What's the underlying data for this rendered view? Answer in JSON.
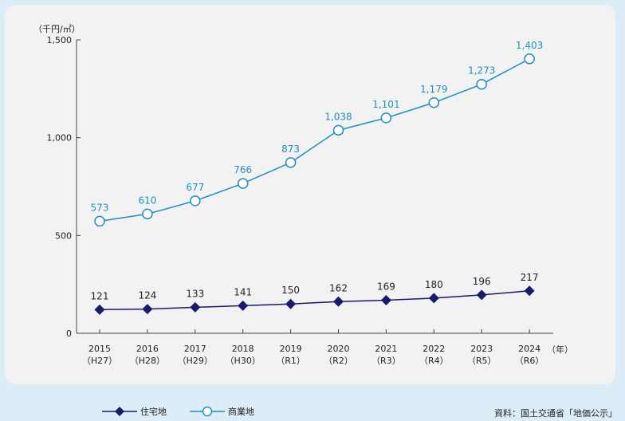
{
  "chart_data": {
    "type": "line",
    "unit_label": "（千円/㎡）",
    "x_suffix": "（年）",
    "categories": [
      "2015",
      "2016",
      "2017",
      "2018",
      "2019",
      "2020",
      "2021",
      "2022",
      "2023",
      "2024"
    ],
    "sub_categories": [
      "（H27）",
      "（H28）",
      "（H29）",
      "（H30）",
      "（R1）",
      "（R2）",
      "（R3）",
      "（R4）",
      "（R5）",
      "（R6）"
    ],
    "ylim": [
      0,
      1500
    ],
    "yticks": [
      0,
      500,
      1000,
      1500
    ],
    "ytick_labels": [
      "0",
      "500",
      "1,000",
      "1,500"
    ],
    "series": [
      {
        "name": "住宅地",
        "values": [
          121,
          124,
          133,
          141,
          150,
          162,
          169,
          180,
          196,
          217
        ],
        "labels": [
          "121",
          "124",
          "133",
          "141",
          "150",
          "162",
          "169",
          "180",
          "196",
          "217"
        ],
        "color": "#1a1a6e",
        "marker": "diamond"
      },
      {
        "name": "商業地",
        "values": [
          573,
          610,
          677,
          766,
          873,
          1038,
          1101,
          1179,
          1273,
          1403
        ],
        "labels": [
          "573",
          "610",
          "677",
          "766",
          "873",
          "1,038",
          "1,101",
          "1,179",
          "1,273",
          "1,403"
        ],
        "color": "#1f8fbf",
        "marker": "circle"
      }
    ],
    "legend_position": "bottom-left",
    "grid": false
  },
  "source": "資料：国土交通省「地価公示」"
}
